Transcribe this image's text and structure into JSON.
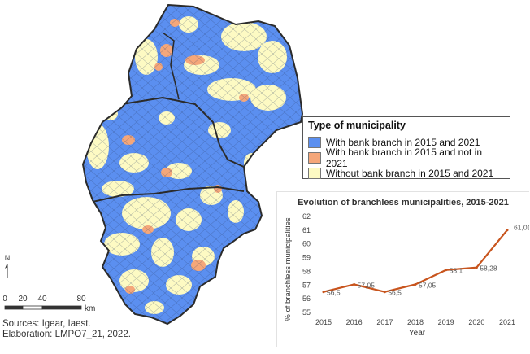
{
  "colors": {
    "with_branch": "#5b8ff0",
    "lost_branch": "#f5a77a",
    "without_branch": "#fdfac3",
    "line": "#c8541d"
  },
  "legend": {
    "title": "Type of municipality",
    "items": [
      {
        "label": "With bank branch in 2015 and 2021",
        "color": "#5b8ff0"
      },
      {
        "label": "With bank branch in 2015 and not in 2021",
        "color": "#f5a77a"
      },
      {
        "label": "Without bank branch in 2015 and 2021",
        "color": "#fdfac3"
      }
    ]
  },
  "scale_bar": {
    "north_label": "N",
    "ticks": [
      "0",
      "20",
      "40",
      "80"
    ],
    "unit": "km"
  },
  "credits": {
    "sources": "Sources: Igear, Iaest.",
    "elaboration": "Elaboration: LMPO7_21, 2022."
  },
  "chart_data": {
    "type": "line",
    "title": "Evolution of branchless municipalities, 2015-2021",
    "xlabel": "Year",
    "ylabel": "% of branchless municipalities",
    "x": [
      2015,
      2016,
      2017,
      2018,
      2019,
      2020,
      2021
    ],
    "values": [
      56.5,
      57.05,
      56.5,
      57.05,
      58.1,
      58.28,
      61.01
    ],
    "data_labels": [
      "56,5",
      "57,05",
      "56,5",
      "57,05",
      "58,1",
      "58,28",
      "61,01"
    ],
    "ylim": [
      55,
      62
    ],
    "yticks": [
      "55",
      "56",
      "57",
      "58",
      "59",
      "60",
      "61",
      "62"
    ],
    "grid": false,
    "legend": "none"
  }
}
